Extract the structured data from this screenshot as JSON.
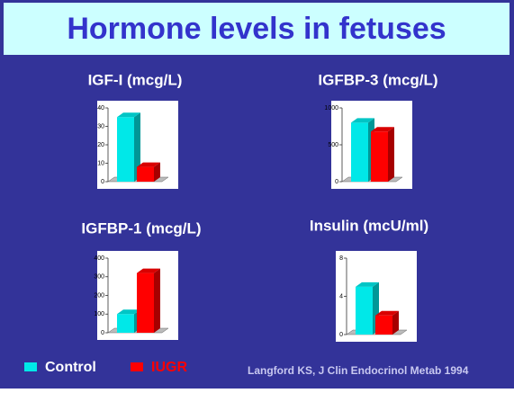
{
  "title": "Hormone levels in fetuses",
  "series": [
    {
      "name": "Control",
      "color": "#00e8e8"
    },
    {
      "name": "IUGR",
      "color": "#ff0000"
    }
  ],
  "source": "Langford KS, J Clin Endocrinol Metab 1994",
  "chart_data": [
    {
      "type": "bar",
      "title": "IGF-I (mcg/L)",
      "values": [
        35,
        8
      ],
      "ylim": [
        0,
        40
      ],
      "yticks": [
        0,
        10,
        20,
        30,
        40
      ]
    },
    {
      "type": "bar",
      "title": "IGFBP-3 (mcg/L)",
      "values": [
        800,
        680
      ],
      "ylim": [
        0,
        1000
      ],
      "yticks": [
        0,
        500,
        1000
      ]
    },
    {
      "type": "bar",
      "title": "IGFBP-1 (mcg/L)",
      "values": [
        100,
        320
      ],
      "ylim": [
        0,
        400
      ],
      "yticks": [
        0,
        100,
        200,
        300,
        400
      ]
    },
    {
      "type": "bar",
      "title": "Insulin (mcU/ml)",
      "values": [
        5,
        2
      ],
      "ylim": [
        0,
        8
      ],
      "yticks": [
        0,
        4,
        8
      ]
    }
  ]
}
